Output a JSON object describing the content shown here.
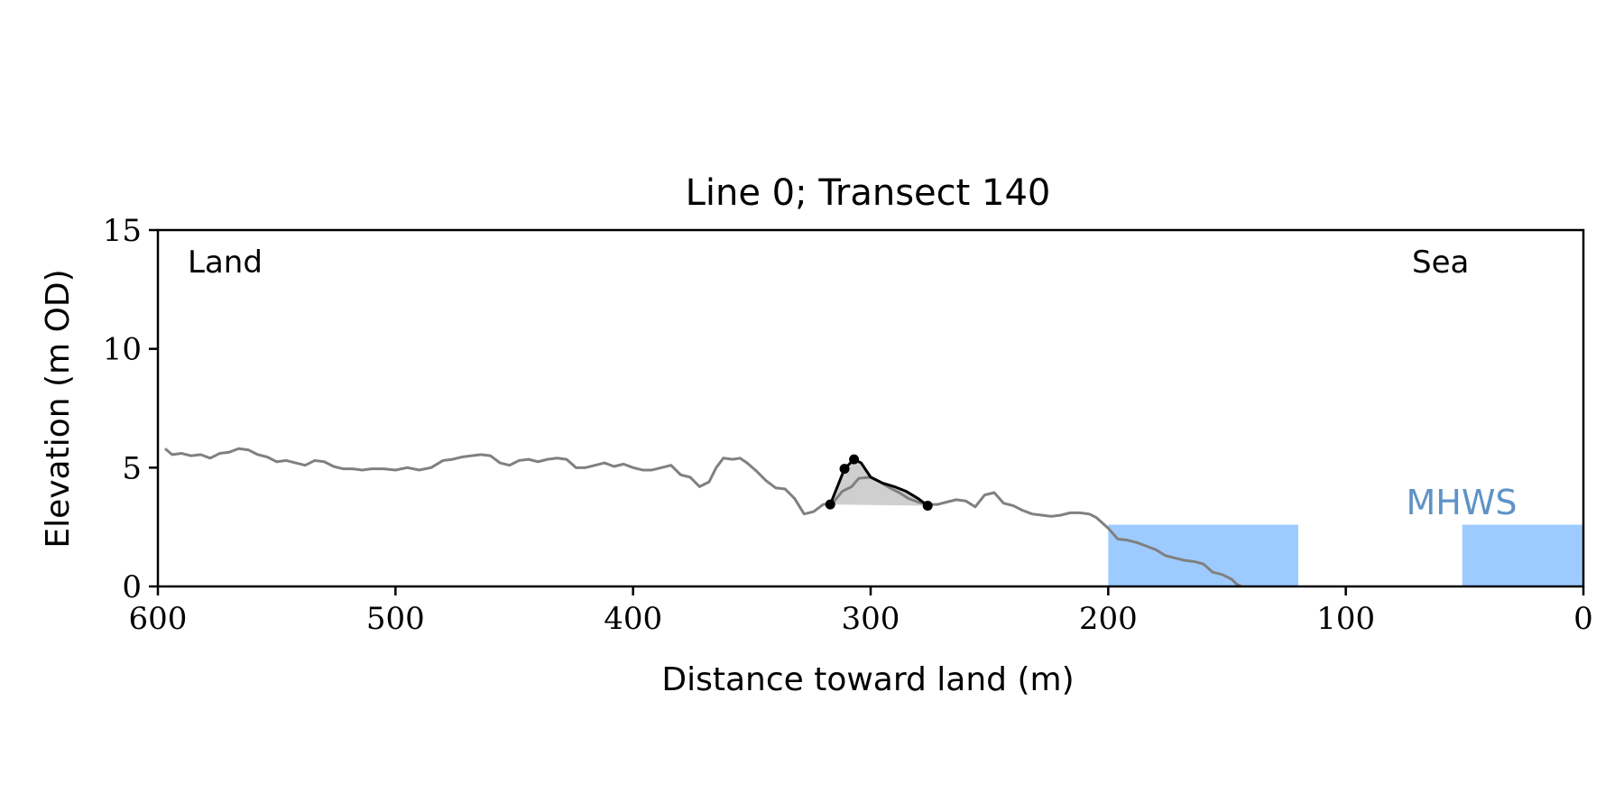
{
  "chart_data": {
    "type": "line",
    "title": "Line 0; Transect 140",
    "xlabel": "Distance toward land (m)",
    "ylabel": "Elevation (m OD)",
    "xlim": [
      600,
      0
    ],
    "ylim": [
      0,
      15
    ],
    "x_ticks": [
      600,
      500,
      400,
      300,
      200,
      100,
      0
    ],
    "y_ticks": [
      0,
      5,
      10,
      15
    ],
    "grid": false,
    "annotations": {
      "land": "Land",
      "sea": "Sea",
      "mhws": "MHWS"
    },
    "mhws_level": 2.6,
    "water_regions": [
      {
        "x_from": 200,
        "x_to": 120
      },
      {
        "x_from": 51,
        "x_to": 0
      }
    ],
    "profile": {
      "x": [
        597,
        594,
        590,
        586,
        582,
        578,
        574,
        570,
        566,
        562,
        558,
        554,
        550,
        546,
        542,
        538,
        534,
        530,
        526,
        522,
        518,
        514,
        510,
        505,
        500,
        495,
        490,
        485,
        480,
        476,
        472,
        468,
        464,
        460,
        456,
        452,
        448,
        444,
        440,
        436,
        432,
        428,
        424,
        420,
        416,
        412,
        408,
        404,
        400,
        396,
        392,
        388,
        384,
        380,
        376,
        372,
        368,
        365,
        362,
        358,
        355,
        352,
        348,
        344,
        340,
        336,
        332,
        328,
        324,
        320,
        316,
        312,
        308,
        305,
        300,
        296,
        292,
        288,
        284,
        280,
        276,
        272,
        268,
        264,
        260,
        256,
        252,
        248,
        244,
        240,
        236,
        232,
        228,
        224,
        220,
        216,
        212,
        208,
        205,
        200,
        196,
        192,
        188,
        184,
        180,
        176,
        172,
        168,
        164,
        160,
        156,
        152,
        148,
        146,
        144
      ],
      "y": [
        5.8,
        5.55,
        5.6,
        5.5,
        5.55,
        5.4,
        5.6,
        5.65,
        5.8,
        5.75,
        5.55,
        5.45,
        5.25,
        5.3,
        5.2,
        5.1,
        5.3,
        5.25,
        5.05,
        4.95,
        4.95,
        4.9,
        4.95,
        4.95,
        4.9,
        5.0,
        4.9,
        5.0,
        5.3,
        5.35,
        5.45,
        5.5,
        5.55,
        5.5,
        5.2,
        5.1,
        5.3,
        5.35,
        5.25,
        5.35,
        5.4,
        5.35,
        5.0,
        5.0,
        5.1,
        5.2,
        5.05,
        5.15,
        5.0,
        4.9,
        4.9,
        5.0,
        5.1,
        4.7,
        4.6,
        4.2,
        4.4,
        5.0,
        5.4,
        5.35,
        5.4,
        5.2,
        4.85,
        4.45,
        4.15,
        4.1,
        3.7,
        3.05,
        3.15,
        3.45,
        3.5,
        4.0,
        4.2,
        4.55,
        4.6,
        4.4,
        4.15,
        3.95,
        3.7,
        3.55,
        3.45,
        3.45,
        3.55,
        3.65,
        3.6,
        3.35,
        3.85,
        3.95,
        3.5,
        3.4,
        3.2,
        3.05,
        3.0,
        2.95,
        3.0,
        3.1,
        3.1,
        3.05,
        2.9,
        2.45,
        2.0,
        1.95,
        1.85,
        1.7,
        1.55,
        1.3,
        1.2,
        1.1,
        1.05,
        0.95,
        0.6,
        0.5,
        0.3,
        0.1,
        0.0
      ]
    },
    "dune": {
      "x": [
        317,
        311,
        307,
        304,
        300,
        295,
        290,
        285,
        280,
        276
      ],
      "y": [
        3.45,
        4.95,
        5.35,
        5.2,
        4.6,
        4.35,
        4.2,
        4.0,
        3.7,
        3.4
      ]
    }
  }
}
